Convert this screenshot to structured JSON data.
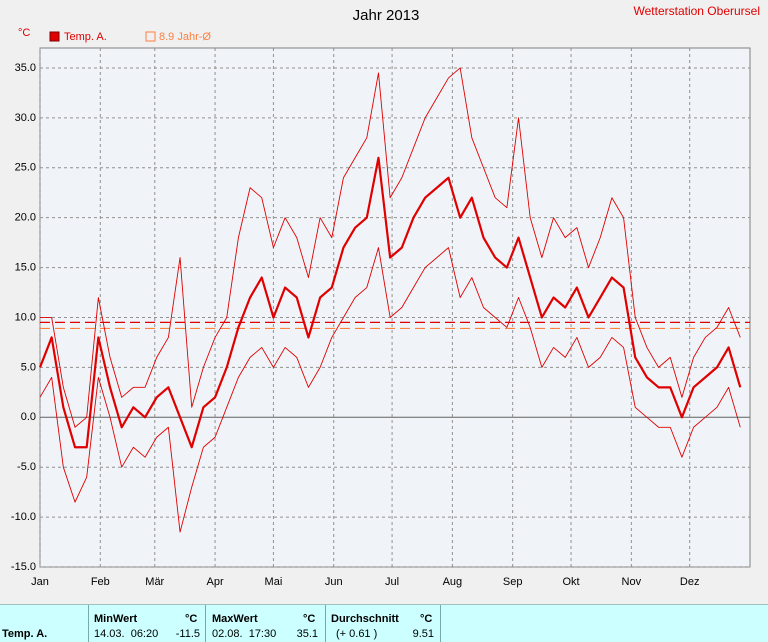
{
  "chart_data": {
    "type": "line",
    "title": "Jahr 2013",
    "source": "Wetterstation Oberursel",
    "y_unit": "°C",
    "x": [
      0,
      6,
      12,
      18,
      24,
      30,
      36,
      42,
      48,
      54,
      60,
      66,
      72,
      78,
      84,
      90,
      96,
      102,
      108,
      114,
      120,
      126,
      132,
      138,
      144,
      150,
      156,
      162,
      168,
      174,
      180,
      186,
      192,
      198,
      204,
      210,
      216,
      222,
      228,
      234,
      240,
      246,
      252,
      258,
      264,
      270,
      276,
      282,
      288,
      294,
      300,
      306,
      312,
      318,
      324,
      330,
      336,
      342,
      348,
      354,
      360
    ],
    "series": [
      {
        "name": "Temp. A.",
        "color": "#e00000",
        "width": 2.2,
        "values": [
          5,
          8,
          1,
          -3,
          -3,
          8,
          3,
          -1,
          1,
          0,
          2,
          3,
          0,
          -3,
          1,
          2,
          5,
          9,
          12,
          14,
          10,
          13,
          12,
          8,
          12,
          13,
          17,
          19,
          20,
          26,
          16,
          17,
          20,
          22,
          23,
          24,
          20,
          22,
          18,
          16,
          15,
          18,
          14,
          10,
          12,
          11,
          13,
          10,
          12,
          14,
          13,
          6,
          4,
          3,
          3,
          0,
          3,
          4,
          5,
          7,
          3
        ]
      },
      {
        "color": "#e00000",
        "width": 0.9,
        "values": [
          10,
          10,
          3,
          -1,
          0,
          12,
          6,
          2,
          3,
          3,
          6,
          8,
          16,
          1,
          5,
          8,
          10,
          18,
          23,
          22,
          17,
          20,
          18,
          14,
          20,
          18,
          24,
          26,
          28,
          34.5,
          22,
          24,
          27,
          30,
          32,
          34,
          35,
          28,
          25,
          22,
          21,
          30,
          20,
          16,
          20,
          18,
          19,
          15,
          18,
          22,
          20,
          10,
          7,
          5,
          6,
          2,
          6,
          8,
          9,
          11,
          8
        ]
      },
      {
        "color": "#e00000",
        "width": 0.9,
        "values": [
          2,
          4,
          -5,
          -8.5,
          -6,
          4,
          0,
          -5,
          -3,
          -4,
          -2,
          -1,
          -11.5,
          -7,
          -3,
          -2,
          1,
          4,
          6,
          7,
          5,
          7,
          6,
          3,
          5,
          8,
          10,
          12,
          13,
          17,
          10,
          11,
          13,
          15,
          16,
          17,
          12,
          14,
          11,
          10,
          9,
          12,
          9,
          5,
          7,
          6,
          8,
          5,
          6,
          8,
          7,
          1,
          0,
          -1,
          -1,
          -4,
          -1,
          0,
          1,
          3,
          -1
        ]
      }
    ],
    "reference_lines": [
      {
        "value": 9.51,
        "color": "#e00000"
      },
      {
        "value": 8.9,
        "color": "#ff8040",
        "label": "8.9 Jahr-Ø"
      }
    ],
    "xlim": [
      0,
      365
    ],
    "xticks": [
      {
        "value": 0,
        "label": "Jan"
      },
      {
        "value": 31,
        "label": "Feb"
      },
      {
        "value": 59,
        "label": "Mär"
      },
      {
        "value": 90,
        "label": "Apr"
      },
      {
        "value": 120,
        "label": "Mai"
      },
      {
        "value": 151,
        "label": "Jun"
      },
      {
        "value": 181,
        "label": "Jul"
      },
      {
        "value": 212,
        "label": "Aug"
      },
      {
        "value": 243,
        "label": "Sep"
      },
      {
        "value": 273,
        "label": "Okt"
      },
      {
        "value": 304,
        "label": "Nov"
      },
      {
        "value": 334,
        "label": "Dez"
      }
    ],
    "ylim": [
      -15,
      37
    ],
    "yticks": [
      {
        "value": -15,
        "label": "-15.0"
      },
      {
        "value": -10,
        "label": "-10.0"
      },
      {
        "value": -5,
        "label": "-5.0"
      },
      {
        "value": 0,
        "label": "0.0"
      },
      {
        "value": 5,
        "label": "5.0"
      },
      {
        "value": 10,
        "label": "10.0"
      },
      {
        "value": 15,
        "label": "15.0"
      },
      {
        "value": 20,
        "label": "20.0"
      },
      {
        "value": 25,
        "label": "25.0"
      },
      {
        "value": 30,
        "label": "30.0"
      },
      {
        "value": 35,
        "label": "35.0"
      }
    ],
    "grid": true
  },
  "summary": {
    "row_label": "Temp. A.",
    "min": {
      "title": "MinWert",
      "unit": "°C",
      "time": "14.03.  06:20",
      "value": "-11.5"
    },
    "max": {
      "title": "MaxWert",
      "unit": "°C",
      "time": "02.08.  17:30",
      "value": "35.1"
    },
    "avg": {
      "title": "Durchschnitt",
      "unit": "°C",
      "delta": "(+ 0.61 )",
      "value": "9.51"
    }
  }
}
